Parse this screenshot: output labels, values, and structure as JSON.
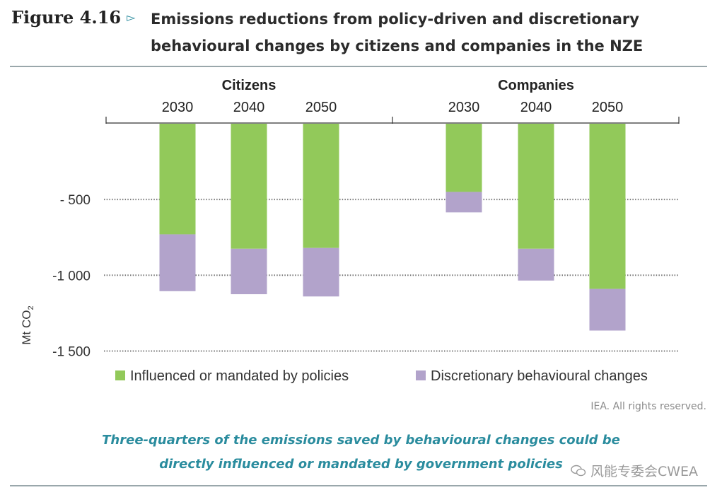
{
  "figure": {
    "label": "Figure 4.16",
    "title": "Emissions reductions from policy-driven and discretionary behavioural changes by citizens and companies in the NZE",
    "arrow_icon": "triangle-right-icon"
  },
  "chart_data": {
    "type": "bar",
    "stacked": true,
    "groups": [
      {
        "name": "Citizens",
        "categories": [
          "2030",
          "2040",
          "2050"
        ]
      },
      {
        "name": "Companies",
        "categories": [
          "2030",
          "2040",
          "2050"
        ]
      }
    ],
    "series": [
      {
        "name": "Influenced or mandated by policies",
        "color": "#92c95a",
        "values": [
          -730,
          -825,
          -820,
          -450,
          -825,
          -1090
        ]
      },
      {
        "name": "Discretionary behavioural changes",
        "color": "#b2a3cb",
        "values": [
          -375,
          -300,
          -320,
          -135,
          -210,
          -275
        ]
      }
    ],
    "ylabel": "Mt CO2",
    "ylabel_parts": {
      "main": "Mt CO",
      "sub": "2"
    },
    "yticks": [
      {
        "value": -500,
        "label": "- 500"
      },
      {
        "value": -1000,
        "label": "-1 000"
      },
      {
        "value": -1500,
        "label": "-1 500"
      }
    ],
    "ylim": [
      -1500,
      0
    ],
    "grid": true,
    "legend_position": "bottom"
  },
  "credit": "IEA. All rights reserved.",
  "caption": {
    "line1": "Three-quarters of the emissions saved by behavioural changes could be",
    "line2": "directly influenced or mandated by government policies"
  },
  "watermark": {
    "text": "风能专委会CWEA",
    "icon": "wechat-icon"
  }
}
